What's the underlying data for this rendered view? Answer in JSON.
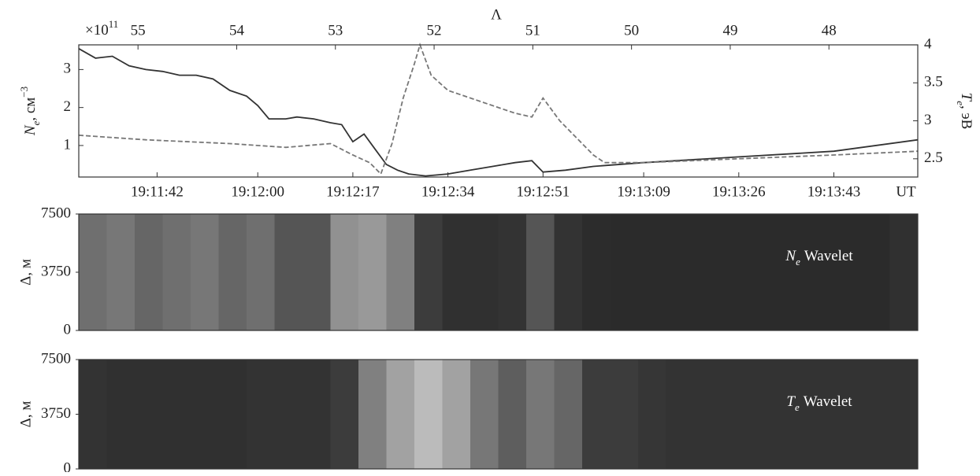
{
  "chart_data": [
    {
      "type": "line",
      "multiplier": {
        "base": "×10",
        "exponent": "11"
      },
      "x2label": "Λ",
      "x2lim": [
        55.6,
        47.1
      ],
      "x2ticks": [
        55,
        54,
        53,
        52,
        51,
        50,
        49,
        48
      ],
      "xlabel": "UT",
      "xlim": [
        "19:11:28",
        "19:13:58"
      ],
      "xticks": [
        "19:11:42",
        "19:12:00",
        "19:12:17",
        "19:12:34",
        "19:12:51",
        "19:13:09",
        "19:13:26",
        "19:13:43"
      ],
      "ylabel": {
        "symbol": "N",
        "subscript": "e",
        "unit": ", см",
        "superscript": "−3"
      },
      "ylim": [
        0.17,
        3.65
      ],
      "yticks": [
        1,
        2,
        3
      ],
      "y2label": {
        "symbol": "T",
        "subscript": "e",
        "unit": ", эВ"
      },
      "y2lim": [
        2.26,
        4.0
      ],
      "y2ticks": [
        2.5,
        3.0,
        3.5,
        4.0
      ],
      "series": [
        {
          "name": "Ne",
          "color": "#333333",
          "dash": "solid",
          "x": [
            "19:11:28",
            "19:11:31",
            "19:11:34",
            "19:11:37",
            "19:11:40",
            "19:11:43",
            "19:11:46",
            "19:11:49",
            "19:11:52",
            "19:11:55",
            "19:11:58",
            "19:12:00",
            "19:12:02",
            "19:12:05",
            "19:12:07",
            "19:12:10",
            "19:12:13",
            "19:12:15",
            "19:12:17",
            "19:12:19",
            "19:12:21",
            "19:12:23",
            "19:12:25",
            "19:12:27",
            "19:12:30",
            "19:12:34",
            "19:12:38",
            "19:12:42",
            "19:12:46",
            "19:12:49",
            "19:12:51",
            "19:12:55",
            "19:13:00",
            "19:13:09",
            "19:13:26",
            "19:13:43",
            "19:13:58"
          ],
          "values": [
            3.55,
            3.3,
            3.35,
            3.1,
            3.0,
            2.95,
            2.85,
            2.85,
            2.75,
            2.45,
            2.3,
            2.05,
            1.7,
            1.7,
            1.75,
            1.7,
            1.6,
            1.55,
            1.1,
            1.3,
            0.9,
            0.5,
            0.35,
            0.25,
            0.2,
            0.25,
            0.35,
            0.45,
            0.55,
            0.6,
            0.3,
            0.35,
            0.45,
            0.55,
            0.7,
            0.85,
            1.15
          ]
        },
        {
          "name": "Te",
          "color": "#777777",
          "dash": "dashed",
          "axis": "y2",
          "x": [
            "19:11:28",
            "19:11:40",
            "19:11:55",
            "19:12:05",
            "19:12:13",
            "19:12:17",
            "19:12:20",
            "19:12:22",
            "19:12:24",
            "19:12:26",
            "19:12:28",
            "19:12:29",
            "19:12:31",
            "19:12:34",
            "19:12:40",
            "19:12:46",
            "19:12:49",
            "19:12:51",
            "19:12:54",
            "19:12:58",
            "19:13:00",
            "19:13:02",
            "19:13:09",
            "19:13:26",
            "19:13:43",
            "19:13:58"
          ],
          "values": [
            2.81,
            2.75,
            2.7,
            2.65,
            2.7,
            2.55,
            2.45,
            2.3,
            2.7,
            3.3,
            3.75,
            4.0,
            3.6,
            3.4,
            3.25,
            3.1,
            3.05,
            3.3,
            3.0,
            2.7,
            2.55,
            2.45,
            2.45,
            2.5,
            2.55,
            2.6
          ]
        }
      ]
    },
    {
      "type": "heatmap",
      "annotation": {
        "symbol": "N",
        "subscript": "e",
        "text": "Wavelet"
      },
      "ylabel": "Δ, м",
      "ylim": [
        0,
        7500
      ],
      "yticks": [
        0,
        3750,
        7500
      ],
      "xlim": [
        "19:11:28",
        "19:13:58"
      ],
      "x": [
        "19:11:28",
        "19:11:33",
        "19:11:38",
        "19:11:43",
        "19:11:48",
        "19:11:53",
        "19:11:58",
        "19:12:03",
        "19:12:08",
        "19:12:13",
        "19:12:18",
        "19:12:23",
        "19:12:28",
        "19:12:33",
        "19:12:38",
        "19:12:43",
        "19:12:48",
        "19:12:53",
        "19:12:58",
        "19:13:03",
        "19:13:08",
        "19:13:13",
        "19:13:18",
        "19:13:23",
        "19:13:28",
        "19:13:33",
        "19:13:38",
        "19:13:43",
        "19:13:48",
        "19:13:53"
      ],
      "values": [
        0.45,
        0.5,
        0.4,
        0.45,
        0.5,
        0.4,
        0.45,
        0.3,
        0.3,
        0.65,
        0.7,
        0.55,
        0.15,
        0.08,
        0.08,
        0.1,
        0.3,
        0.1,
        0.06,
        0.05,
        0.05,
        0.05,
        0.05,
        0.05,
        0.05,
        0.05,
        0.05,
        0.05,
        0.05,
        0.08
      ]
    },
    {
      "type": "heatmap",
      "annotation": {
        "symbol": "T",
        "subscript": "e",
        "text": "Wavelet"
      },
      "ylabel": "Δ, м",
      "ylim": [
        0,
        7500
      ],
      "yticks": [
        0,
        3750,
        7500
      ],
      "xlim": [
        "19:11:28",
        "19:13:58"
      ],
      "x": [
        "19:11:28",
        "19:11:33",
        "19:11:38",
        "19:11:43",
        "19:11:48",
        "19:11:53",
        "19:11:58",
        "19:12:03",
        "19:12:08",
        "19:12:13",
        "19:12:18",
        "19:12:23",
        "19:12:28",
        "19:12:33",
        "19:12:38",
        "19:12:43",
        "19:12:48",
        "19:12:53",
        "19:12:58",
        "19:13:03",
        "19:13:08",
        "19:13:13",
        "19:13:18",
        "19:13:23",
        "19:13:28",
        "19:13:33",
        "19:13:38",
        "19:13:43",
        "19:13:48",
        "19:13:53"
      ],
      "values": [
        0.1,
        0.08,
        0.08,
        0.08,
        0.08,
        0.08,
        0.1,
        0.1,
        0.1,
        0.15,
        0.55,
        0.75,
        0.9,
        0.75,
        0.5,
        0.35,
        0.5,
        0.4,
        0.15,
        0.15,
        0.12,
        0.1,
        0.1,
        0.1,
        0.1,
        0.1,
        0.1,
        0.1,
        0.1,
        0.1
      ]
    }
  ]
}
